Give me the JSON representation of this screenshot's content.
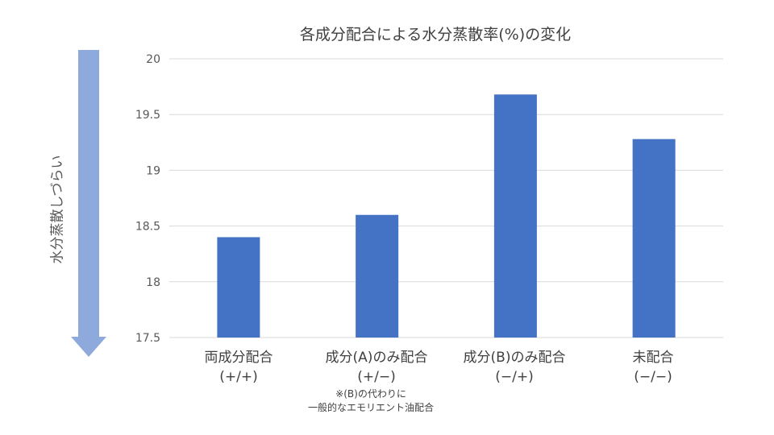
{
  "chart_data": {
    "type": "bar",
    "title": "各成分配合による水分蒸散率(%)の変化",
    "ylabel": "水分蒸散しづらい",
    "categories": [
      {
        "line1": "両成分配合",
        "line2": "(+/+)"
      },
      {
        "line1": "成分(A)のみ配合",
        "line2": "(+/−)"
      },
      {
        "line1": "成分(B)のみ配合",
        "line2": "(−/+)"
      },
      {
        "line1": "未配合",
        "line2": "(−/−)"
      }
    ],
    "values": [
      18.4,
      18.6,
      19.68,
      19.28
    ],
    "ylim": [
      17.5,
      20
    ],
    "yticks": [
      "17.5",
      "18",
      "18.5",
      "19",
      "19.5",
      "20"
    ],
    "grid": true,
    "bar_color": "#4472C4",
    "arrow_color": "#8EA9DB",
    "footnote": {
      "line1": "※(B)の代わりに",
      "line2": "一般的なエモリエント油配合"
    }
  }
}
